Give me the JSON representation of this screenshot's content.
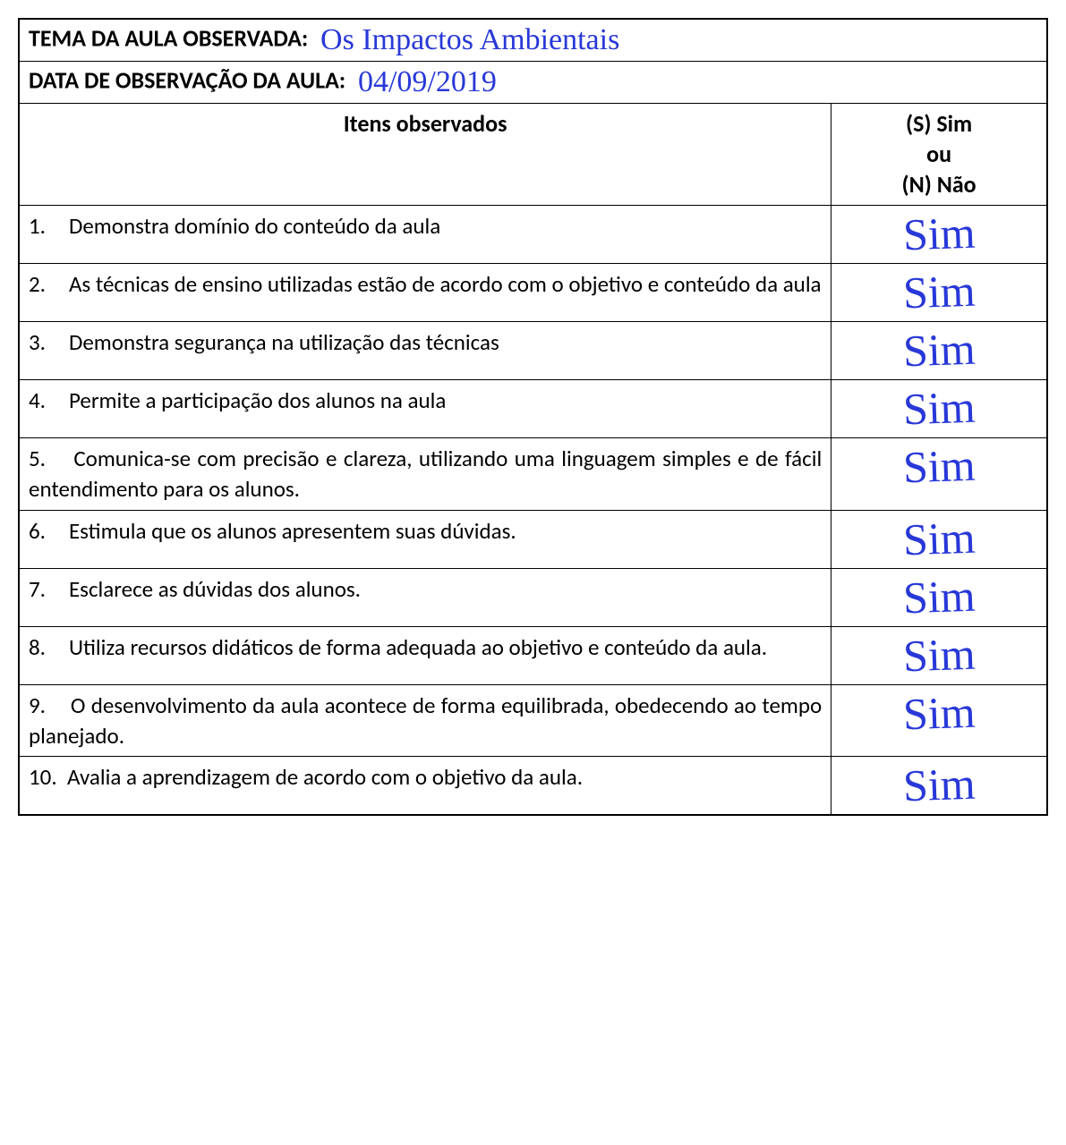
{
  "header": {
    "tema_label": "TEMA DA AULA OBSERVADA:",
    "tema_value": "Os Impactos Ambientais",
    "data_label": "DATA DE OBSERVAÇÃO DA AULA:",
    "data_value": "04/09/2019"
  },
  "columns": {
    "items_header": "Itens observados",
    "answer_header_line1": "(S) Sim",
    "answer_header_line2": "ou",
    "answer_header_line3": "(N) Não"
  },
  "rows": [
    {
      "num": "1.",
      "text": "Demonstra domínio do conteúdo da aula",
      "answer": "Sim",
      "tall": false
    },
    {
      "num": "2.",
      "text": "As técnicas de ensino utilizadas estão de acordo com o objetivo e conteúdo da aula",
      "answer": "Sim",
      "tall": true
    },
    {
      "num": "3.",
      "text": "Demonstra segurança na utilização das técnicas",
      "answer": "Sim",
      "tall": false
    },
    {
      "num": "4.",
      "text": "Permite a participação dos alunos na aula",
      "answer": "Sim",
      "tall": false
    },
    {
      "num": "5.",
      "text": "Comunica-se com precisão e clareza, utilizando uma linguagem simples e de fácil entendimento para os alunos.",
      "answer": "Sim",
      "tall": true
    },
    {
      "num": "6.",
      "text": "Estimula que os alunos apresentem suas dúvidas.",
      "answer": "Sim",
      "tall": false
    },
    {
      "num": "7.",
      "text": "Esclarece as dúvidas dos alunos.",
      "answer": "Sim",
      "tall": false
    },
    {
      "num": "8.",
      "text": "Utiliza recursos didáticos de forma adequada ao objetivo e conteúdo da aula.",
      "answer": "Sim",
      "tall": false
    },
    {
      "num": "9.",
      "text": "O desenvolvimento da aula acontece de forma equilibrada, obedecendo ao tempo planejado.",
      "answer": "Sim",
      "tall": true
    },
    {
      "num": "10.",
      "text": "Avalia a aprendizagem de acordo com o objetivo da aula.",
      "answer": "Sim",
      "tall": false
    }
  ],
  "styling": {
    "handwriting_color": "#2838d8",
    "border_color": "#000000",
    "background_color": "#ffffff",
    "printed_font": "Calibri, Arial, sans-serif",
    "handwritten_font": "Brush Script MT, cursive",
    "printed_fontsize_pt": 19,
    "header_fontsize_pt": 20,
    "handwritten_answer_fontsize_pt": 38
  }
}
